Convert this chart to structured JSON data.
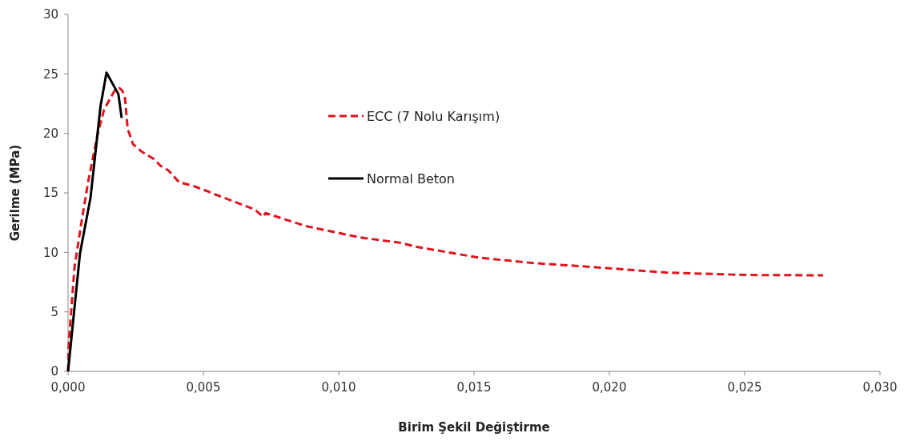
{
  "chart_data": {
    "type": "line",
    "xlabel": "Birim Şekil Değiştirme",
    "ylabel": "Gerilme  (MPa)",
    "xlim": [
      0,
      0.03
    ],
    "ylim": [
      0,
      30
    ],
    "xticks": [
      {
        "value": 0,
        "label": "0,000"
      },
      {
        "value": 0.005,
        "label": "0,005"
      },
      {
        "value": 0.01,
        "label": "0,010"
      },
      {
        "value": 0.015,
        "label": "0,015"
      },
      {
        "value": 0.02,
        "label": "0,020"
      },
      {
        "value": 0.025,
        "label": "0,025"
      },
      {
        "value": 0.03,
        "label": "0,030"
      }
    ],
    "yticks": [
      0,
      5,
      10,
      15,
      20,
      25,
      30
    ],
    "grid": false,
    "legend": "top",
    "marker": "none",
    "series": [
      {
        "name": "ECC (7 Nolu Karışım)",
        "color": "#e0141c",
        "line_style": "dashed",
        "x": [
          0,
          3e-05,
          0.00024,
          0.0005,
          0.00074,
          0.0011,
          0.00133,
          0.00172,
          0.0019,
          0.002,
          0.0021,
          0.0022,
          0.0024,
          0.0027,
          0.0032,
          0.0034,
          0.0037,
          0.0041,
          0.0046,
          0.0052,
          0.0054,
          0.0069,
          0.0072,
          0.0073,
          0.0088,
          0.0108,
          0.0123,
          0.0128,
          0.0143,
          0.0152,
          0.0172,
          0.0192,
          0.0221,
          0.0251,
          0.0279
        ],
        "values": [
          0,
          2.5,
          8.8,
          12.6,
          15.9,
          20,
          22,
          23.6,
          23.8,
          23.6,
          23.1,
          20.4,
          19.1,
          18.5,
          17.8,
          17.3,
          16.9,
          15.9,
          15.6,
          15.1,
          14.9,
          13.6,
          13,
          13.3,
          12.2,
          11.25,
          10.8,
          10.5,
          9.9,
          9.55,
          9.1,
          8.8,
          8.3,
          8.1,
          8.07
        ]
      },
      {
        "name": "Normal Beton",
        "color": "#000000",
        "line_style": "solid",
        "x": [
          0,
          0.00044,
          0.00083,
          0.0012,
          0.00142,
          0.00186,
          0.00198
        ],
        "values": [
          0,
          9.9,
          14.6,
          22.3,
          25.1,
          23.3,
          21.3
        ]
      }
    ]
  }
}
